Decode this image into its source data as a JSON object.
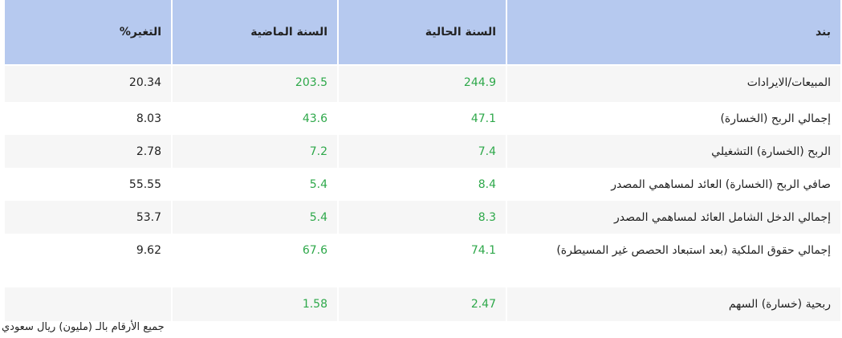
{
  "table": {
    "header": [
      "بند",
      "السنة الحالية",
      "السنة الماضية",
      "التغير%"
    ],
    "rows": [
      [
        "المبيعات/الايرادات",
        "244.9",
        "203.5",
        "20.34"
      ],
      [
        "إجمالي الربح (الخسارة)",
        "47.1",
        "43.6",
        "8.03"
      ],
      [
        "الربح (الخسارة) التشغيلي",
        "7.4",
        "7.2",
        "2.78"
      ],
      [
        "صافي الربح (الخسارة) العائد لمساهمي المصدر",
        "8.4",
        "5.4",
        "55.55"
      ],
      [
        "إجمالي الدخل الشامل العائد لمساهمي المصدر",
        "8.3",
        "5.4",
        "53.7"
      ],
      [
        "إجمالي حقوق الملكية (بعد استبعاد الحصص غير المسيطرة)",
        "74.1",
        "67.6",
        "9.62"
      ],
      [
        "ربحية (خسارة) السهم",
        "2.47",
        "1.58"
      ]
    ]
  },
  "footnote": "جميع الأرقام بالـ (مليون) ريال سعودي"
}
